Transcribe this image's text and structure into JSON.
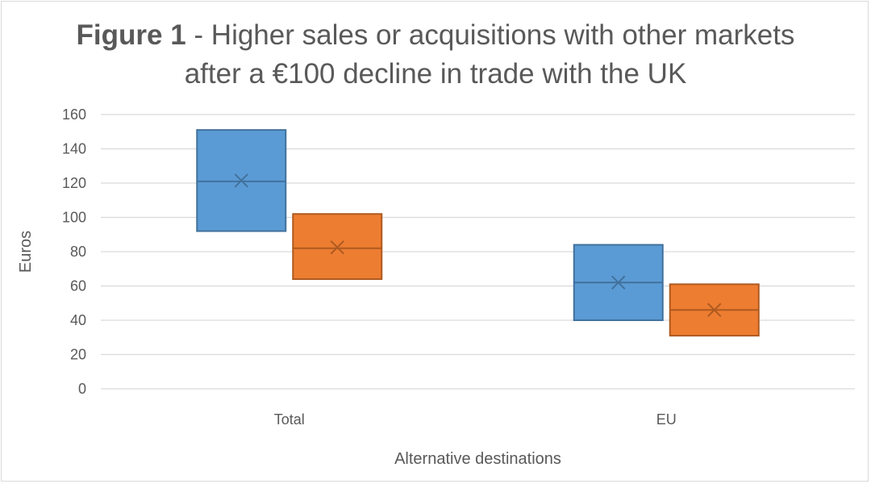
{
  "chart_data": {
    "type": "box",
    "title_bold": "Figure 1",
    "title_rest": " - Higher sales or acquisitions with other markets",
    "title_line2": "after a €100 decline in trade with the UK",
    "xlabel": "Alternative destinations",
    "ylabel": "Euros",
    "ylim": [
      0,
      160
    ],
    "yticks": [
      0,
      20,
      40,
      60,
      80,
      100,
      120,
      140,
      160
    ],
    "categories": [
      "Total",
      "EU"
    ],
    "grid": true,
    "series": [
      {
        "color": "#5b9bd5",
        "stroke": "#41719c",
        "boxes": [
          {
            "category": "Total",
            "q1": 92,
            "median": 121,
            "q3": 151,
            "mean": 121.5
          },
          {
            "category": "EU",
            "q1": 40,
            "median": 62,
            "q3": 84,
            "mean": 62
          }
        ]
      },
      {
        "color": "#ed7d31",
        "stroke": "#ae5a21",
        "boxes": [
          {
            "category": "Total",
            "q1": 64,
            "median": 82,
            "q3": 102,
            "mean": 82.5
          },
          {
            "category": "EU",
            "q1": 31,
            "median": 46,
            "q3": 61,
            "mean": 46
          }
        ]
      }
    ]
  }
}
